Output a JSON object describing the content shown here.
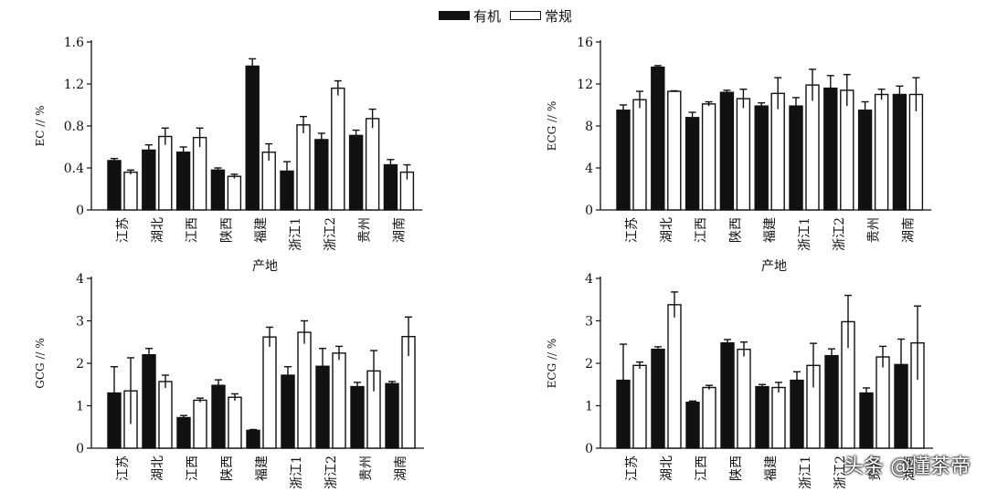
{
  "legend": {
    "organic_label": "有机",
    "conventional_label": "常规",
    "organic_color": "#111111",
    "conventional_color": "#ffffff"
  },
  "watermark": "头条 @懂茶帝",
  "chart_data": [
    {
      "type": "bar",
      "ylabel": "EC // %",
      "xlabel": "产地",
      "ylim": [
        0,
        1.6
      ],
      "yticks": [
        "0",
        "0.4",
        "0.8",
        "1.2",
        "1.6"
      ],
      "categories": [
        "江苏",
        "湖北",
        "江西",
        "陕西",
        "福建",
        "浙江1",
        "浙江2",
        "贵州",
        "湖南"
      ],
      "series": [
        {
          "name": "有机",
          "values": [
            0.47,
            0.57,
            0.55,
            0.38,
            1.37,
            0.37,
            0.67,
            0.71,
            0.43
          ],
          "errors": [
            0.02,
            0.05,
            0.05,
            0.02,
            0.07,
            0.09,
            0.06,
            0.05,
            0.05
          ]
        },
        {
          "name": "常规",
          "values": [
            0.36,
            0.7,
            0.69,
            0.32,
            0.55,
            0.81,
            1.16,
            0.87,
            0.36
          ],
          "errors": [
            0.02,
            0.08,
            0.09,
            0.02,
            0.08,
            0.08,
            0.07,
            0.09,
            0.07
          ]
        }
      ],
      "grid": false
    },
    {
      "type": "bar",
      "ylabel": "ECG // %",
      "xlabel": "产地",
      "ylim": [
        0,
        16
      ],
      "yticks": [
        "0",
        "4",
        "8",
        "12",
        "16"
      ],
      "categories": [
        "江苏",
        "湖北",
        "江西",
        "陕西",
        "福建",
        "浙江1",
        "浙江2",
        "贵州",
        "湖南"
      ],
      "series": [
        {
          "name": "有机",
          "values": [
            9.5,
            13.6,
            8.8,
            11.2,
            9.9,
            9.9,
            11.6,
            9.5,
            11.0
          ],
          "errors": [
            0.5,
            0.15,
            0.5,
            0.2,
            0.3,
            0.8,
            1.2,
            0.8,
            0.8
          ]
        },
        {
          "name": "常规",
          "values": [
            10.5,
            11.3,
            10.1,
            10.6,
            11.1,
            11.9,
            11.4,
            11.0,
            11.0
          ],
          "errors": [
            0.8,
            0.05,
            0.2,
            0.9,
            1.5,
            1.5,
            1.5,
            0.5,
            1.6
          ]
        }
      ],
      "grid": false
    },
    {
      "type": "bar",
      "ylabel": "GCG // %",
      "xlabel": "",
      "ylim": [
        0,
        4
      ],
      "yticks": [
        "0",
        "1",
        "2",
        "3",
        "4"
      ],
      "categories": [
        "江苏",
        "湖北",
        "江西",
        "陕西",
        "福建",
        "浙江1",
        "浙江2",
        "贵州",
        "湖南"
      ],
      "series": [
        {
          "name": "有机",
          "values": [
            1.3,
            2.2,
            0.72,
            1.48,
            0.42,
            1.72,
            1.93,
            1.45,
            1.52
          ],
          "errors": [
            0.62,
            0.15,
            0.05,
            0.13,
            0.02,
            0.2,
            0.42,
            0.1,
            0.05
          ]
        },
        {
          "name": "常规",
          "values": [
            1.35,
            1.57,
            1.13,
            1.2,
            2.62,
            2.73,
            2.24,
            1.82,
            2.63
          ],
          "errors": [
            0.78,
            0.15,
            0.05,
            0.08,
            0.23,
            0.27,
            0.16,
            0.48,
            0.46
          ]
        }
      ],
      "grid": false
    },
    {
      "type": "bar",
      "ylabel": "ECG // %",
      "xlabel": "",
      "ylim": [
        0,
        4
      ],
      "yticks": [
        "0",
        "1",
        "2",
        "3",
        "4"
      ],
      "categories": [
        "江苏",
        "湖北",
        "江西",
        "陕西",
        "福建",
        "浙江1",
        "浙江2",
        "贵州",
        "湖南"
      ],
      "series": [
        {
          "name": "有机",
          "values": [
            1.6,
            2.33,
            1.08,
            2.48,
            1.45,
            1.6,
            2.18,
            1.3,
            1.97
          ],
          "errors": [
            0.85,
            0.06,
            0.03,
            0.08,
            0.05,
            0.2,
            0.16,
            0.12,
            0.6
          ]
        },
        {
          "name": "常规",
          "values": [
            1.95,
            3.38,
            1.43,
            2.33,
            1.43,
            1.95,
            2.98,
            2.15,
            2.48
          ],
          "errors": [
            0.08,
            0.3,
            0.05,
            0.17,
            0.12,
            0.52,
            0.62,
            0.25,
            0.87
          ]
        }
      ],
      "grid": false
    }
  ]
}
